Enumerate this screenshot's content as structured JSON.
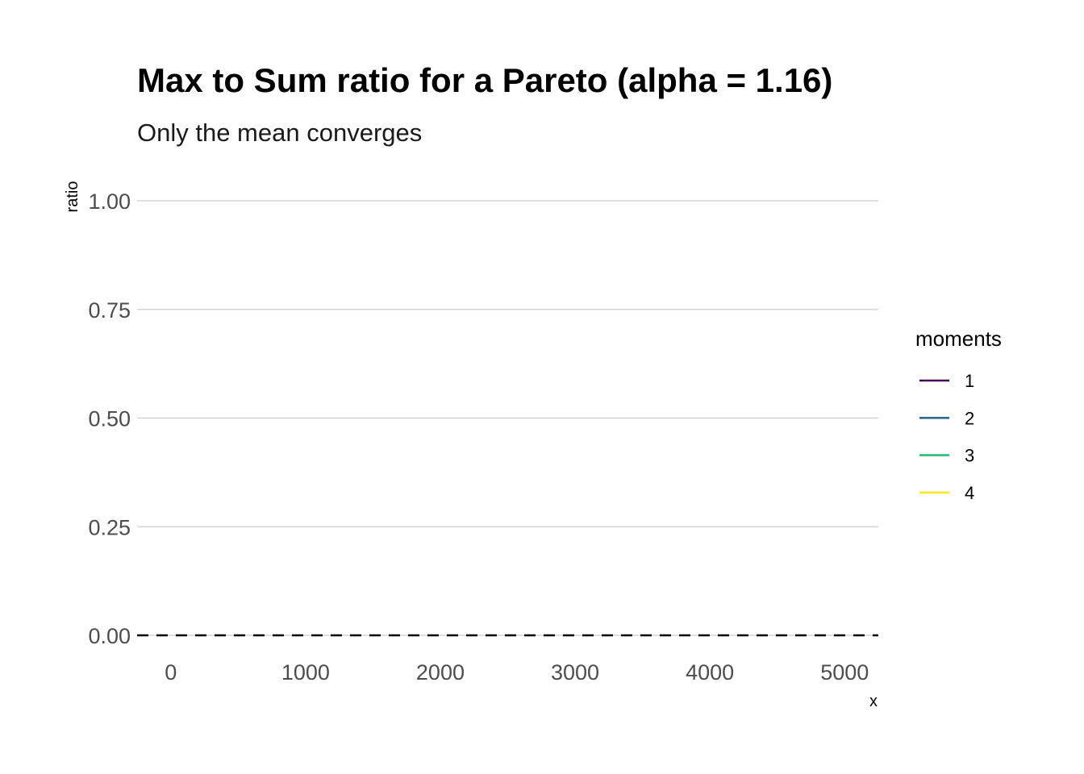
{
  "chart_data": {
    "type": "line",
    "title": "Max to Sum ratio for a Pareto (alpha = 1.16)",
    "subtitle": "Only the mean converges",
    "xlabel": "x",
    "ylabel": "ratio",
    "xlim": [
      -250,
      5250
    ],
    "ylim": [
      0,
      1
    ],
    "x_ticks": [
      0,
      1000,
      2000,
      3000,
      4000,
      5000
    ],
    "x_tick_labels": [
      "0",
      "1000",
      "2000",
      "3000",
      "4000",
      "5000"
    ],
    "y_ticks": [
      0,
      0.25,
      0.5,
      0.75,
      1
    ],
    "y_tick_labels": [
      "0.00",
      "0.25",
      "0.50",
      "0.75",
      "1.00"
    ],
    "grid": "horizontal",
    "reference_line": {
      "y": 0,
      "style": "dashed",
      "color": "#000000"
    },
    "legend": {
      "title": "moments",
      "placement": "right",
      "entries": [
        {
          "label": "1",
          "color": "#440154"
        },
        {
          "label": "2",
          "color": "#31688E"
        },
        {
          "label": "3",
          "color": "#35B779"
        },
        {
          "label": "4",
          "color": "#FDE725"
        }
      ]
    },
    "series": [
      {
        "name": "1",
        "color": "#440154",
        "x": [],
        "y": []
      },
      {
        "name": "2",
        "color": "#31688E",
        "x": [],
        "y": []
      },
      {
        "name": "3",
        "color": "#35B779",
        "x": [],
        "y": []
      },
      {
        "name": "4",
        "color": "#FDE725",
        "x": [],
        "y": []
      }
    ]
  }
}
